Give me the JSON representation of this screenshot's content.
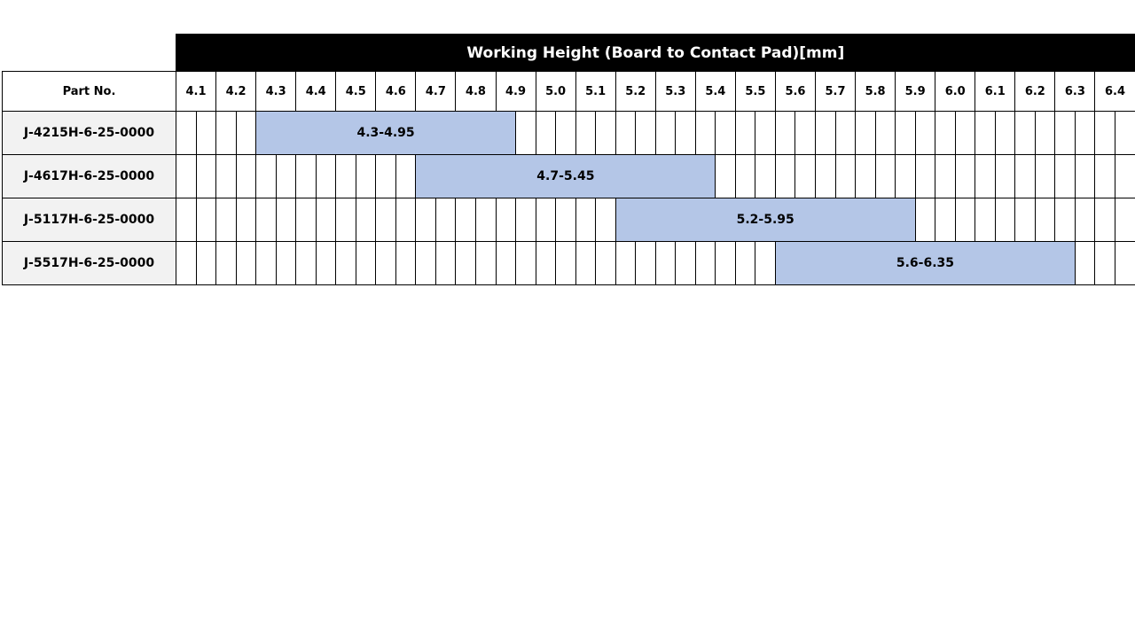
{
  "title": "Working Height (Board to Contact Pad)[mm]",
  "part_header": "Part No.",
  "columns": [
    "4.1",
    "4.2",
    "4.3",
    "4.4",
    "4.5",
    "4.6",
    "4.7",
    "4.8",
    "4.9",
    "5.0",
    "5.1",
    "5.2",
    "5.3",
    "5.4",
    "5.5",
    "5.6",
    "5.7",
    "5.8",
    "5.9",
    "6.0",
    "6.1",
    "6.2",
    "6.3",
    "6.4"
  ],
  "rows": [
    {
      "part": "J-4215H-6-25-0000",
      "range": "4.3-4.95",
      "low": 4.3,
      "high": 4.95
    },
    {
      "part": "J-4617H-6-25-0000",
      "range": "4.7-5.45",
      "low": 4.7,
      "high": 5.45
    },
    {
      "part": "J-5117H-6-25-0000",
      "range": "5.2-5.95",
      "low": 5.2,
      "high": 5.95
    },
    {
      "part": "J-5517H-6-25-0000",
      "range": "5.6-6.35",
      "low": 5.6,
      "high": 6.35
    }
  ],
  "colors": {
    "bar": "#b4c6e7",
    "part_cell": "#f2f2f2",
    "title_bg": "#000000"
  }
}
